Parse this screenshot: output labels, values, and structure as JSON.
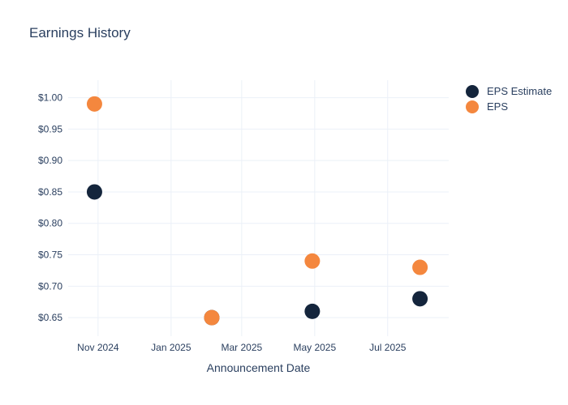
{
  "title": "Earnings History",
  "colors": {
    "background": "#ffffff",
    "grid": "#ebf0f8",
    "text": "#2a3f5f",
    "eps_estimate": "#14253c",
    "eps": "#f4873e"
  },
  "legend": {
    "items": [
      "EPS Estimate",
      "EPS"
    ]
  },
  "chart_data": {
    "type": "scatter",
    "title": "Earnings History",
    "xlabel": "Announcement Date",
    "ylabel": "",
    "grid": true,
    "legend_position": "top-right",
    "marker_size": 19,
    "x_ticks": [
      {
        "date": "2024-11-01",
        "label": "Nov 2024"
      },
      {
        "date": "2025-01-01",
        "label": "Jan 2025"
      },
      {
        "date": "2025-03-01",
        "label": "Mar 2025"
      },
      {
        "date": "2025-05-01",
        "label": "May 2025"
      },
      {
        "date": "2025-07-01",
        "label": "Jul 2025"
      }
    ],
    "xlim_dates": [
      "2024-10-07",
      "2025-08-21"
    ],
    "y_ticks": [
      0.65,
      0.7,
      0.75,
      0.8,
      0.85,
      0.9,
      0.95,
      1.0
    ],
    "y_tick_labels": [
      "$0.65",
      "$0.70",
      "$0.75",
      "$0.80",
      "$0.85",
      "$0.90",
      "$0.95",
      "$1.00"
    ],
    "ylim": [
      0.6205,
      1.0278
    ],
    "series": [
      {
        "name": "EPS Estimate",
        "color": "#14253c",
        "points": [
          {
            "date": "2024-10-29",
            "value": 0.85
          },
          {
            "date": "2025-02-04",
            "value": 0.65
          },
          {
            "date": "2025-04-29",
            "value": 0.66
          },
          {
            "date": "2025-07-28",
            "value": 0.68
          }
        ]
      },
      {
        "name": "EPS",
        "color": "#f4873e",
        "points": [
          {
            "date": "2024-10-29",
            "value": 0.99
          },
          {
            "date": "2025-02-04",
            "value": 0.65
          },
          {
            "date": "2025-04-29",
            "value": 0.74
          },
          {
            "date": "2025-07-28",
            "value": 0.73
          }
        ]
      }
    ]
  }
}
